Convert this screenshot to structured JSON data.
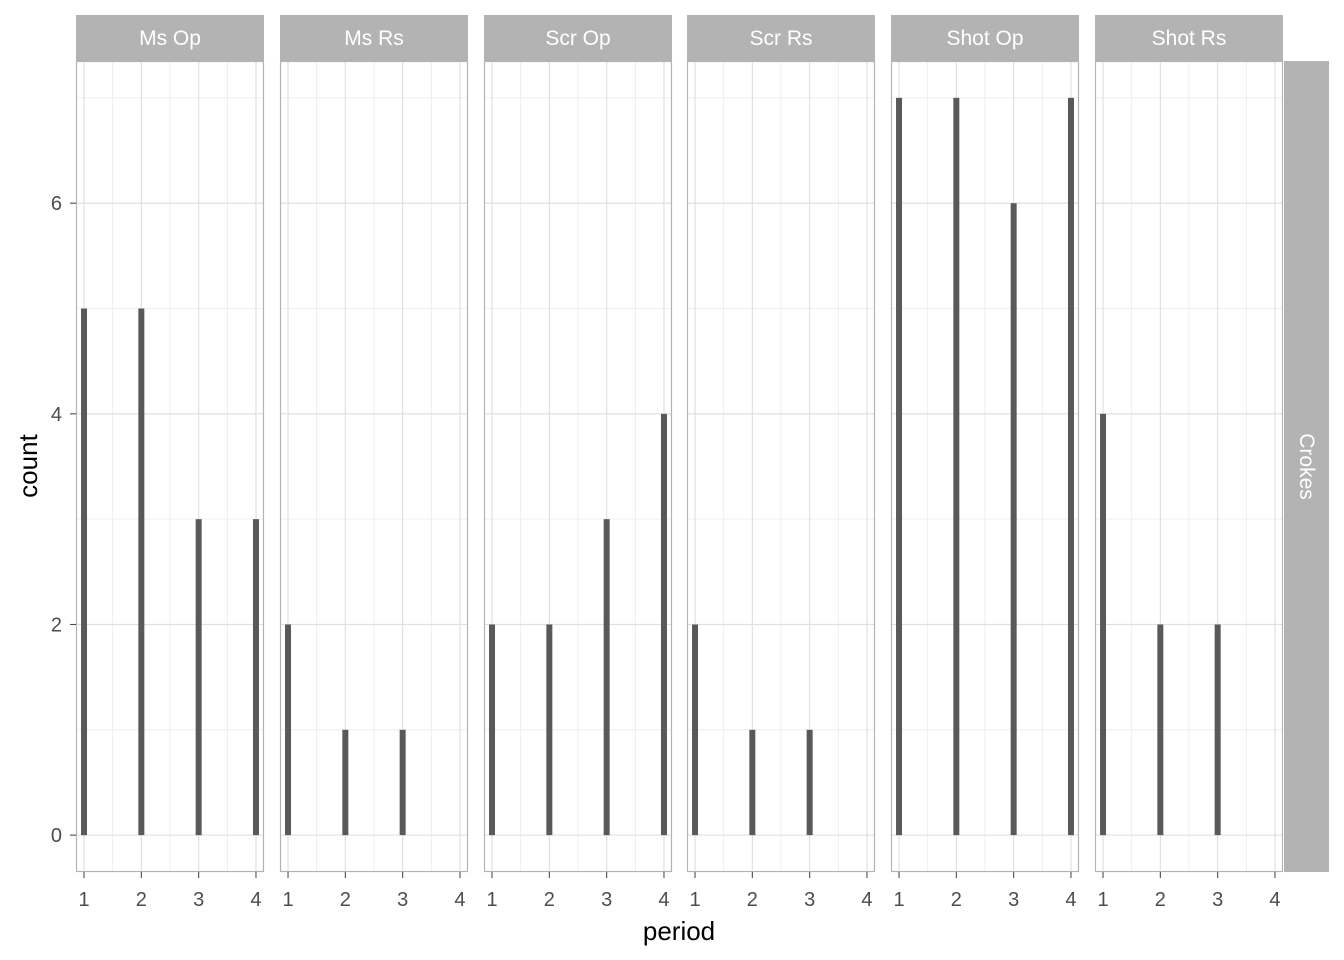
{
  "chart_data": {
    "type": "bar",
    "facet_rows": [
      "Crokes"
    ],
    "xlabel": "period",
    "ylabel": "count",
    "x_ticks": [
      1,
      2,
      3,
      4
    ],
    "y_ticks": [
      0,
      2,
      4,
      6
    ],
    "xlim": [
      0.86,
      4.14
    ],
    "ylim": [
      -0.35,
      7.35
    ],
    "grid": true,
    "bar_color": "#595959",
    "strip_color": "#b3b3b3",
    "panels": [
      {
        "name": "Ms Op",
        "x": [
          1,
          2,
          3,
          4
        ],
        "values": [
          5,
          5,
          3,
          3
        ]
      },
      {
        "name": "Ms Rs",
        "x": [
          1,
          2,
          3
        ],
        "values": [
          2,
          1,
          1
        ]
      },
      {
        "name": "Scr Op",
        "x": [
          1,
          2,
          3,
          4
        ],
        "values": [
          2,
          2,
          3,
          4
        ]
      },
      {
        "name": "Scr Rs",
        "x": [
          1,
          2,
          3
        ],
        "values": [
          2,
          1,
          1
        ]
      },
      {
        "name": "Shot Op",
        "x": [
          1,
          2,
          3,
          4
        ],
        "values": [
          7,
          7,
          6,
          7
        ]
      },
      {
        "name": "Shot Rs",
        "x": [
          1,
          2,
          3
        ],
        "values": [
          4,
          2,
          2
        ]
      }
    ]
  }
}
